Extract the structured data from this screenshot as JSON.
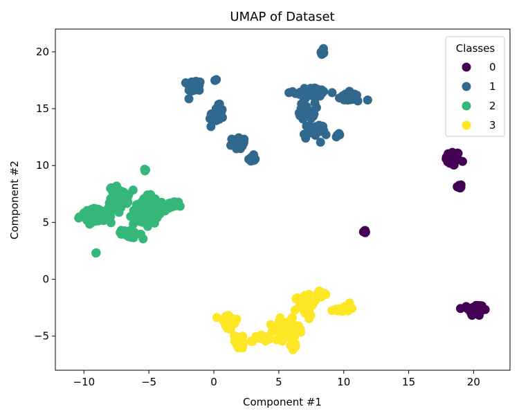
{
  "chart_data": {
    "type": "scatter",
    "title": "UMAP of Dataset",
    "xlabel": "Component #1",
    "ylabel": "Component #2",
    "xlim": [
      -12.2,
      22.8
    ],
    "ylim": [
      -8.0,
      22.0
    ],
    "xticks": [
      -10,
      -5,
      0,
      5,
      10,
      15,
      20
    ],
    "yticks": [
      -5,
      0,
      5,
      10,
      15,
      20
    ],
    "xtick_labels": [
      "−10",
      "−5",
      "0",
      "5",
      "10",
      "15",
      "20"
    ],
    "ytick_labels": [
      "−5",
      "0",
      "5",
      "10",
      "15",
      "20"
    ],
    "grid": false,
    "legend": {
      "title": "Classes",
      "placement": "upper right"
    },
    "series": [
      {
        "name": "0",
        "color": "#440154",
        "clusters": [
          {
            "center": [
              18.4,
              10.6
            ],
            "spread": [
              0.45,
              0.55
            ],
            "n": 70
          },
          {
            "center": [
              18.9,
              8.2
            ],
            "spread": [
              0.15,
              0.25
            ],
            "n": 8
          },
          {
            "center": [
              11.6,
              4.2
            ],
            "spread": [
              0.12,
              0.1
            ],
            "n": 6
          },
          {
            "center": [
              20.2,
              -2.7
            ],
            "spread": [
              0.5,
              0.45
            ],
            "n": 80
          }
        ]
      },
      {
        "name": "1",
        "color": "#31688e",
        "clusters": [
          {
            "center": [
              -1.5,
              17.0
            ],
            "spread": [
              0.45,
              0.45
            ],
            "n": 30
          },
          {
            "center": [
              0.2,
              14.4
            ],
            "spread": [
              0.45,
              0.7
            ],
            "n": 40
          },
          {
            "center": [
              1.9,
              12.0
            ],
            "spread": [
              0.4,
              0.45
            ],
            "n": 20
          },
          {
            "center": [
              2.9,
              10.6
            ],
            "spread": [
              0.2,
              0.25
            ],
            "n": 14
          },
          {
            "center": [
              0.1,
              17.5
            ],
            "spread": [
              0.1,
              0.1
            ],
            "n": 3
          },
          {
            "center": [
              8.4,
              20.0
            ],
            "spread": [
              0.12,
              0.5
            ],
            "n": 10
          },
          {
            "center": [
              7.6,
              16.4
            ],
            "spread": [
              1.2,
              0.35
            ],
            "n": 50
          },
          {
            "center": [
              7.2,
              14.8
            ],
            "spread": [
              0.5,
              0.6
            ],
            "n": 25
          },
          {
            "center": [
              7.8,
              13.0
            ],
            "spread": [
              0.75,
              0.55
            ],
            "n": 30
          },
          {
            "center": [
              10.5,
              16.0
            ],
            "spread": [
              0.8,
              0.35
            ],
            "n": 25
          },
          {
            "center": [
              9.5,
              12.6
            ],
            "spread": [
              0.2,
              0.2
            ],
            "n": 4
          }
        ]
      },
      {
        "name": "2",
        "color": "#35b779",
        "clusters": [
          {
            "center": [
              -9.0,
              5.6
            ],
            "spread": [
              1.0,
              0.5
            ],
            "n": 90
          },
          {
            "center": [
              -7.3,
              7.2
            ],
            "spread": [
              0.6,
              0.8
            ],
            "n": 50
          },
          {
            "center": [
              -5.2,
              6.1
            ],
            "spread": [
              0.8,
              1.1
            ],
            "n": 80
          },
          {
            "center": [
              -6.5,
              4.0
            ],
            "spread": [
              0.5,
              0.3
            ],
            "n": 20
          },
          {
            "center": [
              -3.4,
              6.4
            ],
            "spread": [
              0.55,
              0.4
            ],
            "n": 20
          },
          {
            "center": [
              -5.3,
              9.6
            ],
            "spread": [
              0.1,
              0.1
            ],
            "n": 3
          },
          {
            "center": [
              -9.1,
              2.3
            ],
            "spread": [
              0.08,
              0.08
            ],
            "n": 2
          }
        ]
      },
      {
        "name": "3",
        "color": "#fde725",
        "clusters": [
          {
            "center": [
              1.1,
              -3.8
            ],
            "spread": [
              0.6,
              0.65
            ],
            "n": 40
          },
          {
            "center": [
              2.0,
              -5.6
            ],
            "spread": [
              0.5,
              0.45
            ],
            "n": 20
          },
          {
            "center": [
              3.6,
              -5.1
            ],
            "spread": [
              0.6,
              0.3
            ],
            "n": 20
          },
          {
            "center": [
              5.6,
              -4.4
            ],
            "spread": [
              0.8,
              0.7
            ],
            "n": 80
          },
          {
            "center": [
              7.0,
              -2.2
            ],
            "spread": [
              0.6,
              0.8
            ],
            "n": 40
          },
          {
            "center": [
              8.3,
              -1.3
            ],
            "spread": [
              0.3,
              0.4
            ],
            "n": 12
          },
          {
            "center": [
              9.9,
              -2.6
            ],
            "spread": [
              0.55,
              0.25
            ],
            "n": 18
          },
          {
            "center": [
              6.2,
              -5.8
            ],
            "spread": [
              0.25,
              0.3
            ],
            "n": 8
          }
        ]
      }
    ]
  }
}
